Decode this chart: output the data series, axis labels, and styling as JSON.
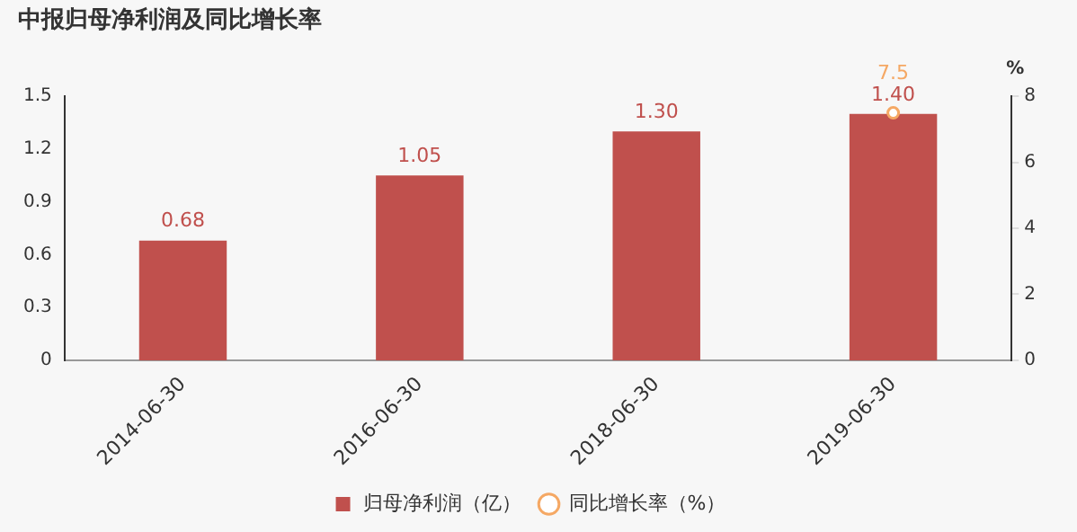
{
  "chart_data": {
    "type": "bar",
    "title": "中报归母净利润及同比增长率",
    "y2label": "%",
    "categories": [
      "2014-06-30",
      "2016-06-30",
      "2018-06-30",
      "2019-06-30"
    ],
    "series": [
      {
        "name": "归母净利润（亿）",
        "color": "#c0504d",
        "values": [
          0.68,
          1.05,
          1.3,
          1.4
        ],
        "value_labels": [
          "0.68",
          "1.05",
          "1.30",
          "1.40"
        ]
      },
      {
        "name": "同比增长率（%）",
        "type": "line",
        "axis": "y2",
        "color": "#f5a864",
        "marker": "circle",
        "values": [
          null,
          null,
          null,
          7.5
        ],
        "value_labels": [
          null,
          null,
          null,
          "7.5"
        ]
      }
    ],
    "ylim": [
      0,
      1.5
    ],
    "yticks": [
      {
        "value": 0,
        "label": "0"
      },
      {
        "value": 0.3,
        "label": "0.3"
      },
      {
        "value": 0.6,
        "label": "0.6"
      },
      {
        "value": 0.9,
        "label": "0.9"
      },
      {
        "value": 1.2,
        "label": "1.2"
      },
      {
        "value": 1.5,
        "label": "1.5"
      }
    ],
    "y2lim": [
      0,
      8
    ],
    "y2ticks": [
      0,
      2,
      4,
      6,
      8
    ],
    "grid": false,
    "legend": "bottom"
  }
}
